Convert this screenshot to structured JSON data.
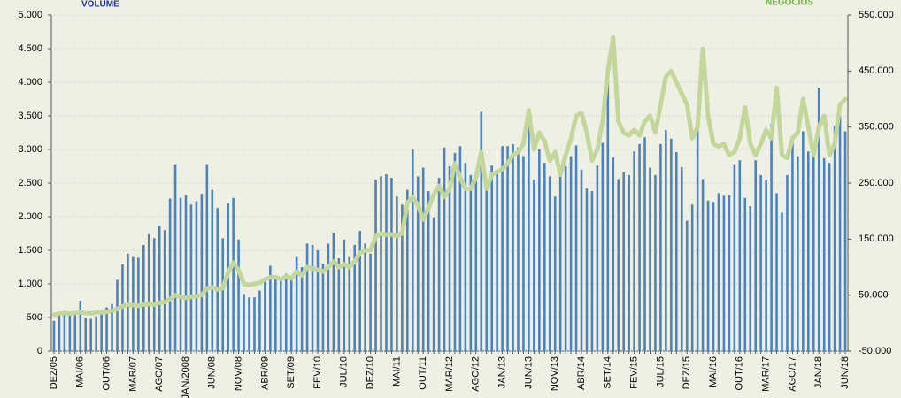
{
  "chart_data": {
    "type": "bar",
    "categories": [
      "DEZ/05",
      null,
      null,
      null,
      null,
      "MAI/06",
      null,
      null,
      null,
      null,
      "OUT/06",
      null,
      null,
      null,
      null,
      "MAR/07",
      null,
      null,
      null,
      null,
      "AGO/07",
      null,
      null,
      null,
      null,
      "JAN/2008",
      null,
      null,
      null,
      null,
      "JUN/08",
      null,
      null,
      null,
      null,
      "NOV/08",
      null,
      null,
      null,
      null,
      "ABR/09",
      null,
      null,
      null,
      null,
      "SET/09",
      null,
      null,
      null,
      null,
      "FEV/10",
      null,
      null,
      null,
      null,
      "JUL/10",
      null,
      null,
      null,
      null,
      "DEZ/10",
      null,
      null,
      null,
      null,
      "MAI/11",
      null,
      null,
      null,
      null,
      "OUT/11",
      null,
      null,
      null,
      null,
      "MAR/12",
      null,
      null,
      null,
      null,
      "AGO/12",
      null,
      null,
      null,
      null,
      "JAN/13",
      null,
      null,
      null,
      null,
      "JUN/13",
      null,
      null,
      null,
      null,
      "NOV/13",
      null,
      null,
      null,
      null,
      "ABR/14",
      null,
      null,
      null,
      null,
      "SET/14",
      null,
      null,
      null,
      null,
      "FEV/15",
      null,
      null,
      null,
      null,
      "JUL/15",
      null,
      null,
      null,
      null,
      "DEZ/15",
      null,
      null,
      null,
      null,
      "MAI/16",
      null,
      null,
      null,
      null,
      "OUT/16",
      null,
      null,
      null,
      null,
      "MAR/17",
      null,
      null,
      null,
      null,
      "AGO/17",
      null,
      null,
      null,
      null,
      "JAN/18",
      null,
      null,
      null,
      null,
      "JUN/18"
    ],
    "series": [
      {
        "name": "VOLUME",
        "type": "bar",
        "color": "#4f81bd",
        "label_color": "#1f2f8f",
        "values": [
          450,
          550,
          600,
          580,
          560,
          750,
          500,
          480,
          520,
          600,
          650,
          700,
          1060,
          1290,
          1450,
          1400,
          1390,
          1580,
          1740,
          1680,
          1860,
          1800,
          2270,
          2780,
          2280,
          2320,
          2180,
          2230,
          2340,
          2780,
          2400,
          2130,
          1680,
          2200,
          2280,
          1660,
          850,
          800,
          800,
          900,
          1080,
          1270,
          1100,
          1100,
          1150,
          1080,
          1400,
          1250,
          1600,
          1580,
          1500,
          1300,
          1600,
          1760,
          1380,
          1660,
          1400,
          1580,
          1790,
          1600,
          1450,
          2550,
          2600,
          2630,
          2580,
          2300,
          2180,
          2400,
          3000,
          2600,
          2730,
          2380,
          1990,
          2580,
          3030,
          2750,
          2950,
          3050,
          2800,
          2620,
          2550,
          3560,
          2450,
          2760,
          2700,
          3050,
          3050,
          3080,
          3030,
          2900,
          3380,
          2550,
          3000,
          2800,
          2600,
          2300,
          2700,
          2750,
          2900,
          3060,
          2700,
          2420,
          2380,
          2760,
          3100,
          4180,
          2880,
          2560,
          2660,
          2620,
          2970,
          3080,
          3180,
          2730,
          2620,
          3080,
          3290,
          3160,
          2960,
          2740,
          1940,
          2180,
          3530,
          2560,
          2240,
          2220,
          2350,
          2310,
          2320,
          2780,
          2840,
          2280,
          2160,
          2840,
          2620,
          2550,
          3380,
          2350,
          2060,
          2620,
          3100,
          2900,
          3270,
          2970,
          2920,
          3920,
          2870,
          2800,
          3350,
          3500,
          3270
        ]
      },
      {
        "name": "NEGÓCIOS",
        "type": "line",
        "axis": "y2",
        "color": "#c3d69b",
        "label_color": "#6db33f",
        "values": [
          15000,
          17000,
          18000,
          17000,
          18000,
          19000,
          18000,
          17000,
          19000,
          19000,
          20000,
          22000,
          25000,
          30000,
          33000,
          32000,
          31000,
          33000,
          34000,
          33000,
          36000,
          38000,
          43000,
          50000,
          47000,
          45000,
          47000,
          48000,
          50000,
          62000,
          64000,
          60000,
          62000,
          90000,
          108000,
          95000,
          70000,
          68000,
          70000,
          72000,
          78000,
          82000,
          82000,
          78000,
          83000,
          80000,
          92000,
          85000,
          100000,
          98000,
          95000,
          92000,
          100000,
          110000,
          100000,
          105000,
          100000,
          110000,
          125000,
          130000,
          130000,
          155000,
          160000,
          158000,
          158000,
          155000,
          160000,
          215000,
          225000,
          210000,
          185000,
          205000,
          230000,
          245000,
          225000,
          240000,
          285000,
          260000,
          240000,
          240000,
          260000,
          305000,
          240000,
          265000,
          270000,
          275000,
          285000,
          300000,
          305000,
          320000,
          380000,
          310000,
          340000,
          325000,
          290000,
          305000,
          265000,
          300000,
          330000,
          370000,
          375000,
          340000,
          290000,
          310000,
          360000,
          450000,
          510000,
          360000,
          340000,
          335000,
          345000,
          335000,
          360000,
          370000,
          340000,
          390000,
          440000,
          450000,
          430000,
          410000,
          390000,
          330000,
          350000,
          490000,
          370000,
          320000,
          315000,
          320000,
          300000,
          305000,
          330000,
          385000,
          320000,
          300000,
          320000,
          345000,
          330000,
          420000,
          300000,
          295000,
          330000,
          340000,
          400000,
          350000,
          300000,
          350000,
          370000,
          300000,
          320000,
          390000,
          400000
        ]
      }
    ],
    "ylim": [
      0,
      5000
    ],
    "yticks": [
      0,
      500,
      {
        "value": 1000,
        "label": "1.000"
      },
      {
        "value": 1500,
        "label": "1.500"
      },
      {
        "value": 2000,
        "label": "2.000"
      },
      {
        "value": 2500,
        "label": "2.500"
      },
      {
        "value": 3000,
        "label": "3.000"
      },
      {
        "value": 3500,
        "label": "3.500"
      },
      {
        "value": 4000,
        "label": "4.000"
      },
      {
        "value": 4500,
        "label": "4.500"
      },
      {
        "value": 5000,
        "label": "5.000"
      }
    ],
    "y2lim": [
      -50000,
      550000
    ],
    "y2ticks": [
      {
        "value": -50000,
        "label": "-50.000"
      },
      {
        "value": 50000,
        "label": "50.000"
      },
      {
        "value": 150000,
        "label": "150.000"
      },
      {
        "value": 250000,
        "label": "250.000"
      },
      {
        "value": 350000,
        "label": "350.000"
      },
      {
        "value": 450000,
        "label": "450.000"
      },
      {
        "value": 550000,
        "label": "550.000"
      }
    ],
    "grid": true
  }
}
